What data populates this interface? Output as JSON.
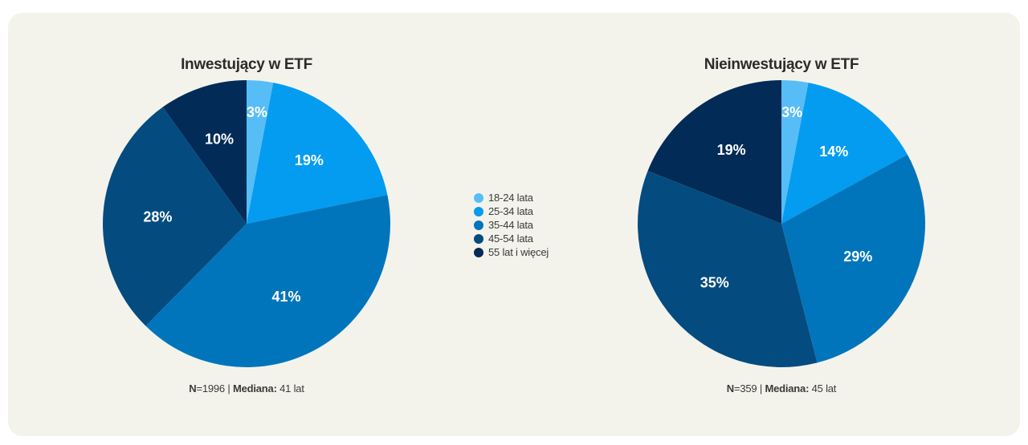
{
  "legend": [
    {
      "label": "18-24 lata",
      "color": "#57bdf7"
    },
    {
      "label": "25-34 lata",
      "color": "#039cf0"
    },
    {
      "label": "35-44 lata",
      "color": "#0175bc"
    },
    {
      "label": "45-54 lata",
      "color": "#044b80"
    },
    {
      "label": "55 lat i więcej",
      "color": "#032b57"
    }
  ],
  "chart_data": [
    {
      "type": "pie",
      "title": "Inwestujący w ETF",
      "categories": [
        "18-24 lata",
        "25-34 lata",
        "35-44 lata",
        "45-54 lata",
        "55 lat i więcej"
      ],
      "values": [
        3,
        19,
        41,
        28,
        10
      ],
      "labels": [
        "3%",
        "19%",
        "41%",
        "28%",
        "10%"
      ],
      "footnote": {
        "n_label": "N",
        "n_value": "=1996 | ",
        "median_label": "Mediana:",
        "median_value": " 41 lat"
      }
    },
    {
      "type": "pie",
      "title": "Nieinwestujący w ETF",
      "categories": [
        "18-24 lata",
        "25-34 lata",
        "35-44 lata",
        "45-54 lata",
        "55 lat i więcej"
      ],
      "values": [
        3,
        14,
        29,
        35,
        19
      ],
      "labels": [
        "3%",
        "14%",
        "29%",
        "35%",
        "19%"
      ],
      "footnote": {
        "n_label": "N",
        "n_value": "=359 | ",
        "median_label": "Mediana:",
        "median_value": " 45 lat"
      }
    }
  ]
}
